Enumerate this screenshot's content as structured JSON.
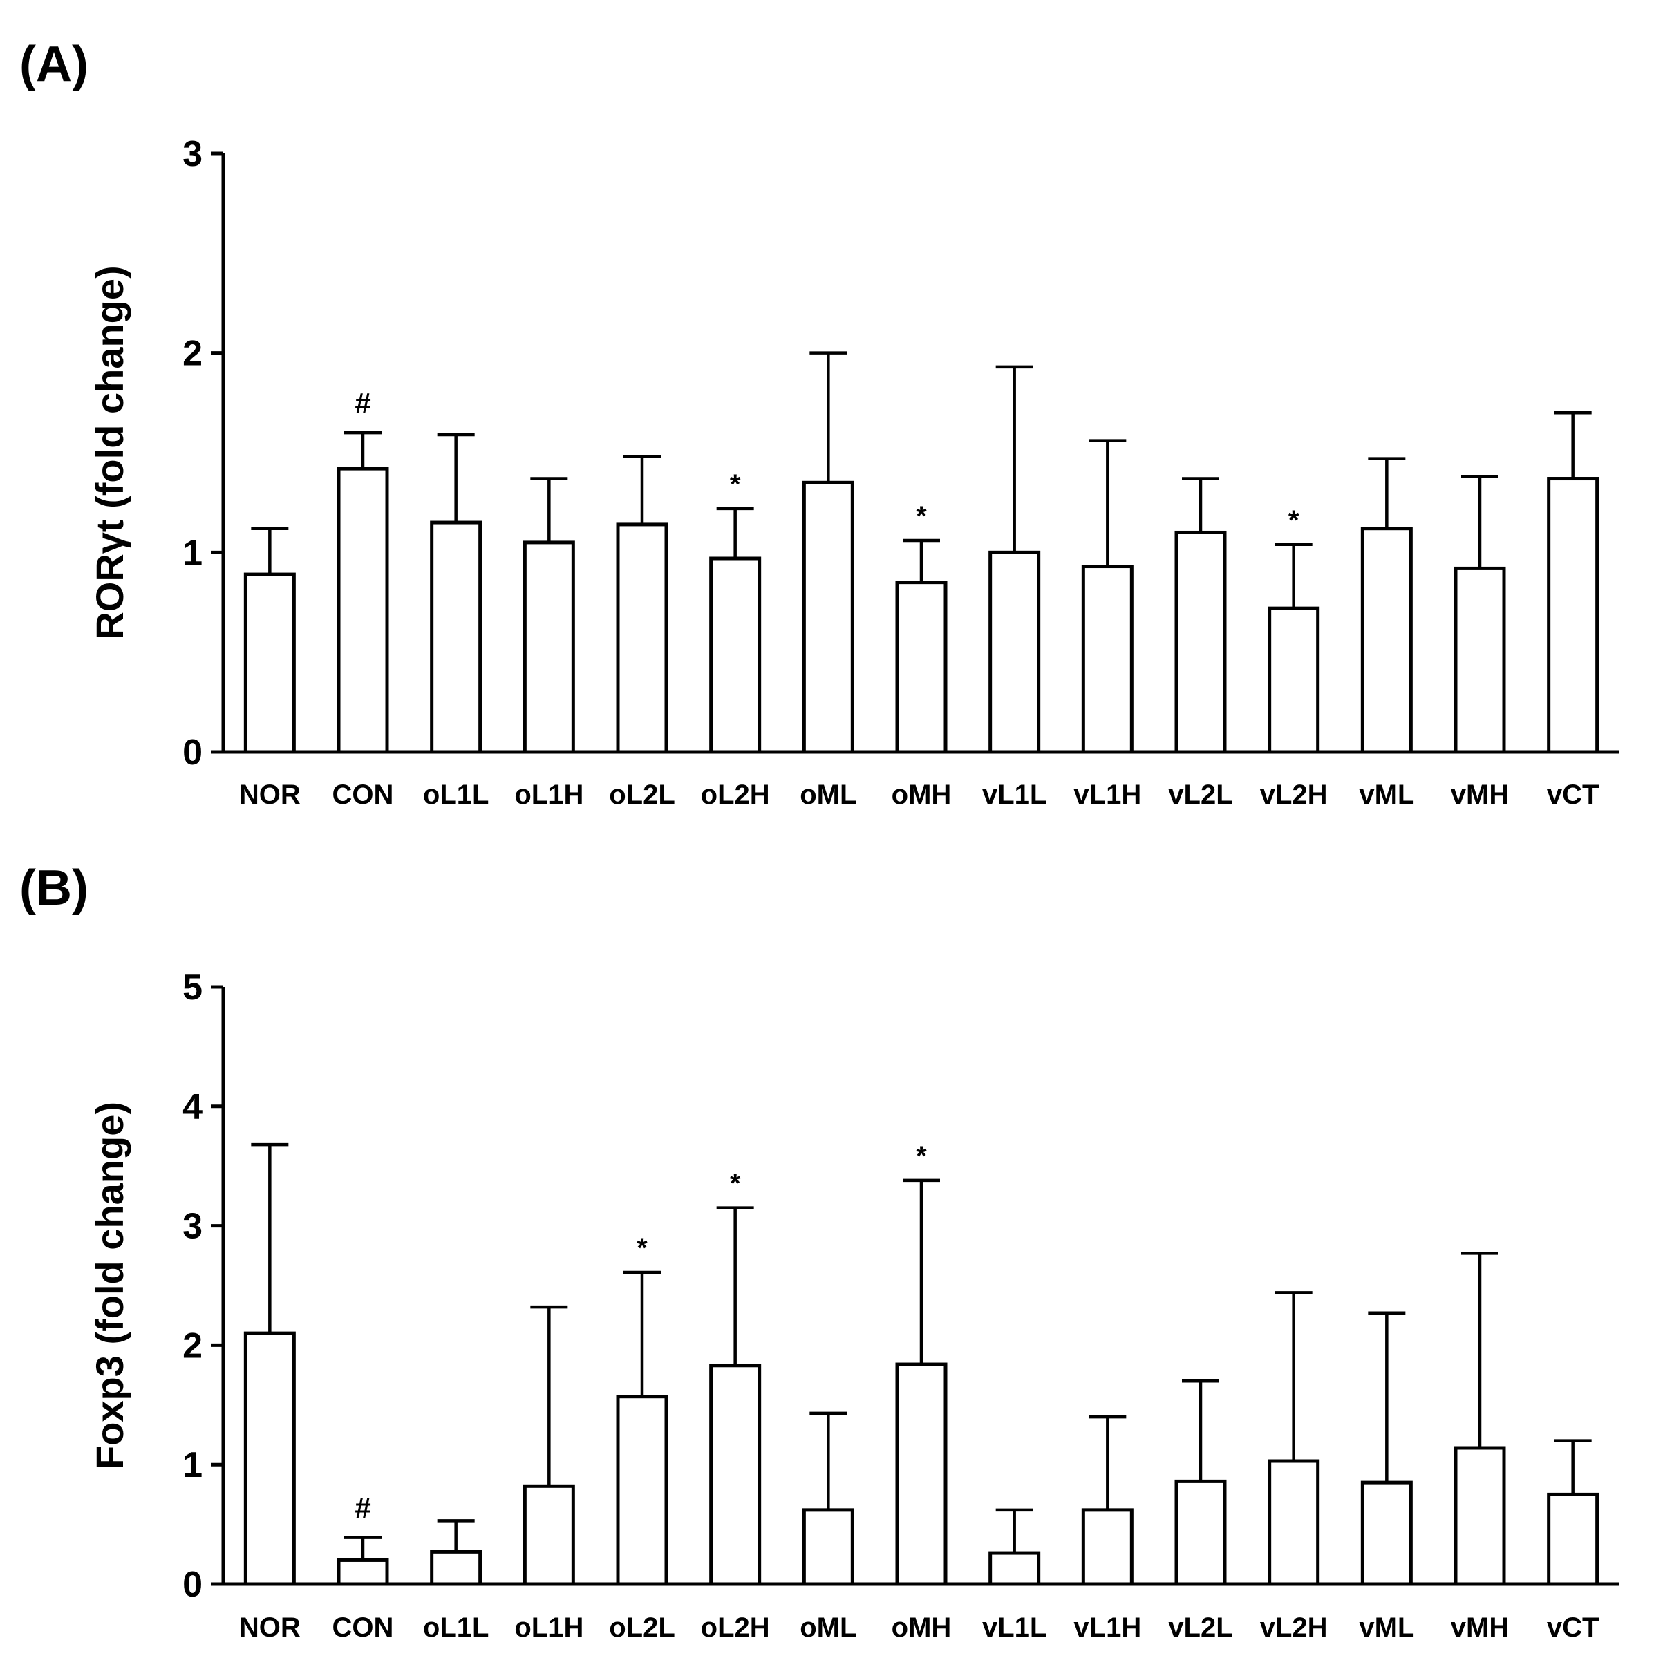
{
  "chart_data": [
    {
      "panel_label": "(A)",
      "type": "bar",
      "ylabel": "RORγt (fold change)",
      "ylim": [
        0,
        3
      ],
      "yticks": [
        "0",
        "1",
        "2",
        "3"
      ],
      "categories": [
        "NOR",
        "CON",
        "oL1L",
        "oL1H",
        "oL2L",
        "oL2H",
        "oML",
        "oMH",
        "vL1L",
        "vL1H",
        "vL2L",
        "vL2H",
        "vML",
        "vMH",
        "vCT"
      ],
      "values": [
        0.89,
        1.42,
        1.15,
        1.05,
        1.14,
        0.97,
        1.35,
        0.85,
        1.0,
        0.93,
        1.1,
        0.72,
        1.12,
        0.92,
        1.37
      ],
      "error": [
        0.23,
        0.18,
        0.44,
        0.32,
        0.34,
        0.25,
        0.65,
        0.21,
        0.93,
        0.63,
        0.27,
        0.32,
        0.35,
        0.46,
        0.33
      ],
      "markers": [
        "",
        "#",
        "",
        "",
        "",
        "*",
        "",
        "*",
        "",
        "",
        "",
        "*",
        "",
        "",
        ""
      ]
    },
    {
      "panel_label": "(B)",
      "type": "bar",
      "ylabel": "Foxp3 (fold change)",
      "ylim": [
        0,
        5
      ],
      "yticks": [
        "0",
        "1",
        "2",
        "3",
        "4",
        "5"
      ],
      "categories": [
        "NOR",
        "CON",
        "oL1L",
        "oL1H",
        "oL2L",
        "oL2H",
        "oML",
        "oMH",
        "vL1L",
        "vL1H",
        "vL2L",
        "vL2H",
        "vML",
        "vMH",
        "vCT"
      ],
      "values": [
        2.1,
        0.2,
        0.27,
        0.82,
        1.57,
        1.83,
        0.62,
        1.84,
        0.26,
        0.62,
        0.86,
        1.03,
        0.85,
        1.14,
        0.75
      ],
      "error": [
        1.58,
        0.19,
        0.26,
        1.5,
        1.04,
        1.32,
        0.81,
        1.54,
        0.36,
        0.78,
        0.84,
        1.41,
        1.42,
        1.63,
        0.45
      ],
      "markers": [
        "",
        "#",
        "",
        "",
        "*",
        "*",
        "",
        "*",
        "",
        "",
        "",
        "",
        "",
        "",
        ""
      ]
    }
  ]
}
